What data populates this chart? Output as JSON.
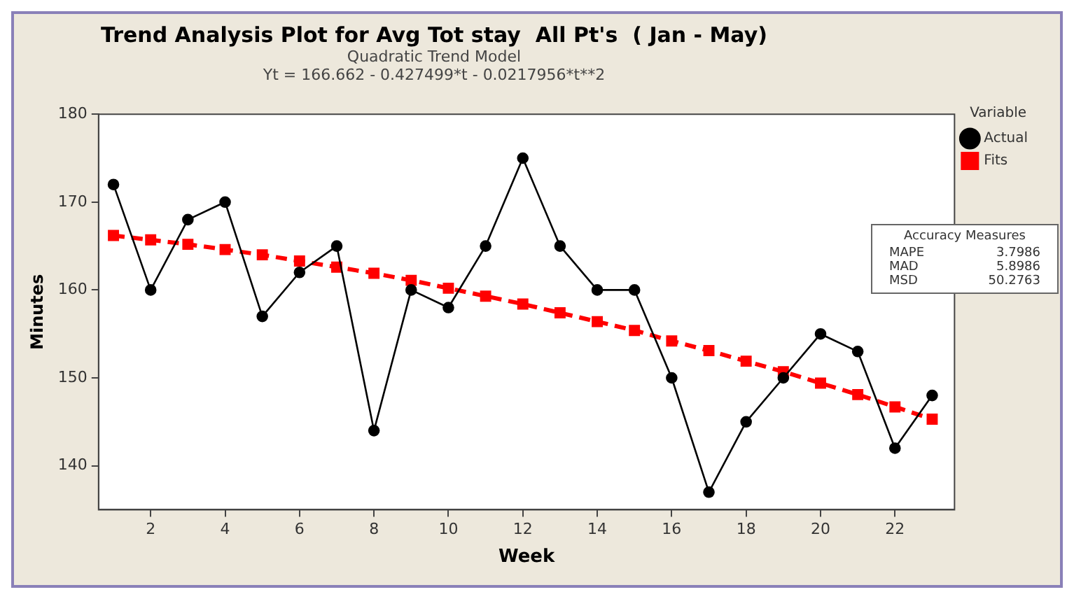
{
  "chart_data": {
    "type": "line",
    "title": "Trend Analysis Plot for Avg Tot stay  All Pt's  ( Jan - May)",
    "subtitle": "Quadratic Trend Model",
    "annotations": [
      "Yt = 166.662 - 0.427499*t - 0.0217956*t**2",
      "Accuracy Measures",
      "MAPE 3.7986",
      "MAD 5.8986",
      "MSD 50.2763"
    ],
    "xlabel": "Week",
    "ylabel": "Minutes",
    "legend_title": "Variable",
    "legend": "right",
    "grid": false,
    "x": [
      1,
      2,
      3,
      4,
      5,
      6,
      7,
      8,
      9,
      10,
      11,
      12,
      13,
      14,
      15,
      16,
      17,
      18,
      19,
      20,
      21,
      22,
      23
    ],
    "xlim": [
      0.6,
      23.6
    ],
    "xticks": [
      2,
      4,
      6,
      8,
      10,
      12,
      14,
      16,
      18,
      20,
      22
    ],
    "ylim": [
      135,
      180
    ],
    "yticks": [
      140,
      150,
      160,
      170,
      180
    ],
    "series": [
      {
        "name": "Actual",
        "color": "#000000",
        "marker": "circle",
        "line_style": "solid",
        "values": [
          172,
          160,
          168,
          170,
          157,
          162,
          165,
          144,
          160,
          158,
          165,
          175,
          165,
          160,
          160,
          150,
          137,
          145,
          150,
          155,
          153,
          142,
          148
        ]
      },
      {
        "name": "Fits",
        "color": "#ff0000",
        "marker": "square",
        "line_style": "dashed",
        "values": [
          166.2,
          165.7,
          165.2,
          164.6,
          164.0,
          163.3,
          162.6,
          161.9,
          161.1,
          160.2,
          159.3,
          158.4,
          157.4,
          156.4,
          155.4,
          154.2,
          153.1,
          151.9,
          150.7,
          149.4,
          148.1,
          146.7,
          145.3
        ]
      }
    ]
  }
}
